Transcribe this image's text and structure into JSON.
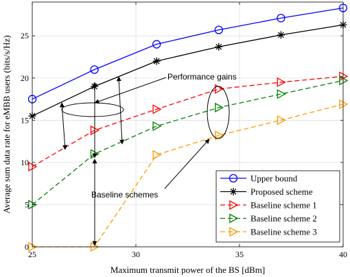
{
  "chart_data": {
    "type": "line",
    "xlabel": "Maximum transmit power of the BS [dBm]",
    "ylabel": "Average sum data rate for eMBB users (bits/s/Hz)",
    "xlim": [
      25,
      40
    ],
    "ylim": [
      0,
      29
    ],
    "xticks": [
      25,
      30,
      35,
      40
    ],
    "yticks": [
      0,
      5,
      10,
      15,
      20,
      25
    ],
    "grid": true,
    "legend_position": "bottom-right",
    "series": [
      {
        "name": "Upper bound",
        "color": "#0000ff",
        "dash": "solid",
        "marker": "circle",
        "x": [
          25,
          28,
          31,
          34,
          37,
          40
        ],
        "y": [
          17.5,
          21.0,
          24.0,
          25.7,
          27.1,
          28.3
        ]
      },
      {
        "name": "Proposed scheme",
        "color": "#000000",
        "dash": "solid",
        "marker": "star",
        "x": [
          25,
          28,
          31,
          34,
          37,
          40
        ],
        "y": [
          15.5,
          19.0,
          22.0,
          23.7,
          25.1,
          26.3
        ]
      },
      {
        "name": "Baseline scheme 1",
        "color": "#ff0000",
        "dash": "dashed",
        "marker": "triangle-right",
        "x": [
          25,
          28,
          31,
          34,
          37,
          40
        ],
        "y": [
          9.5,
          13.8,
          16.3,
          18.7,
          19.5,
          20.2
        ]
      },
      {
        "name": "Baseline scheme 2",
        "color": "#008000",
        "dash": "dashed",
        "marker": "triangle-right",
        "x": [
          25,
          28,
          31,
          34,
          37,
          40
        ],
        "y": [
          5.0,
          11.0,
          14.3,
          16.5,
          18.1,
          19.7
        ]
      },
      {
        "name": "Baseline scheme 3",
        "color": "#ff9900",
        "dash": "dashed",
        "marker": "triangle-right",
        "x": [
          25,
          28,
          31,
          34,
          37,
          40
        ],
        "y": [
          0.0,
          0.0,
          10.9,
          13.2,
          15.0,
          16.9
        ]
      }
    ],
    "annotations": [
      {
        "id": "performance-gains",
        "text": "Performance gains"
      },
      {
        "id": "baseline-schemes",
        "text": "Baseline schemes"
      }
    ]
  }
}
